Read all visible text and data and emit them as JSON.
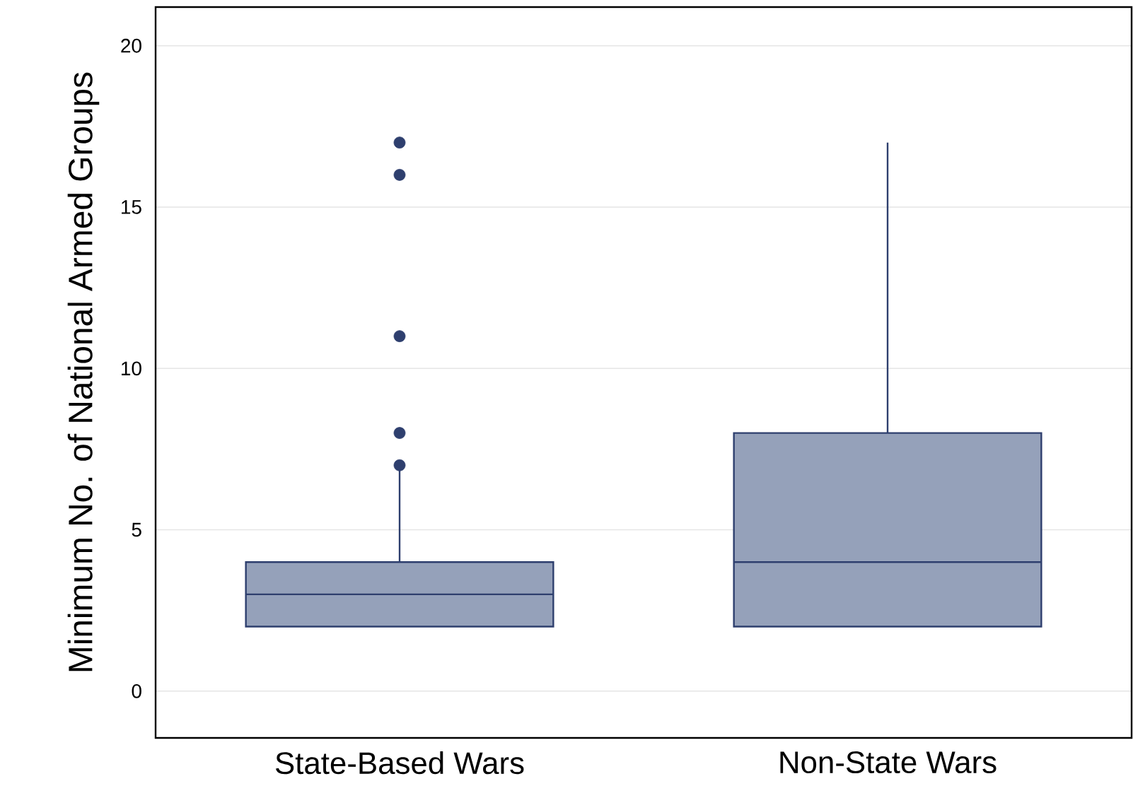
{
  "chart_data": {
    "type": "box",
    "ylabel": "Minimum No. of National Armed Groups",
    "categories": [
      "State-Based Wars",
      "Non-State Wars"
    ],
    "boxes": [
      {
        "low": 2,
        "q1": 2,
        "median": 3,
        "q3": 4,
        "high": 7,
        "outliers": [
          7,
          8,
          11,
          16,
          17
        ]
      },
      {
        "low": 2,
        "q1": 2,
        "median": 4,
        "q3": 8,
        "high": 17
      }
    ],
    "color": "#95a1ba",
    "ylim": [
      -1.45,
      21.2
    ],
    "yticks": [
      0,
      5,
      10,
      15,
      20
    ],
    "grid": "y"
  }
}
